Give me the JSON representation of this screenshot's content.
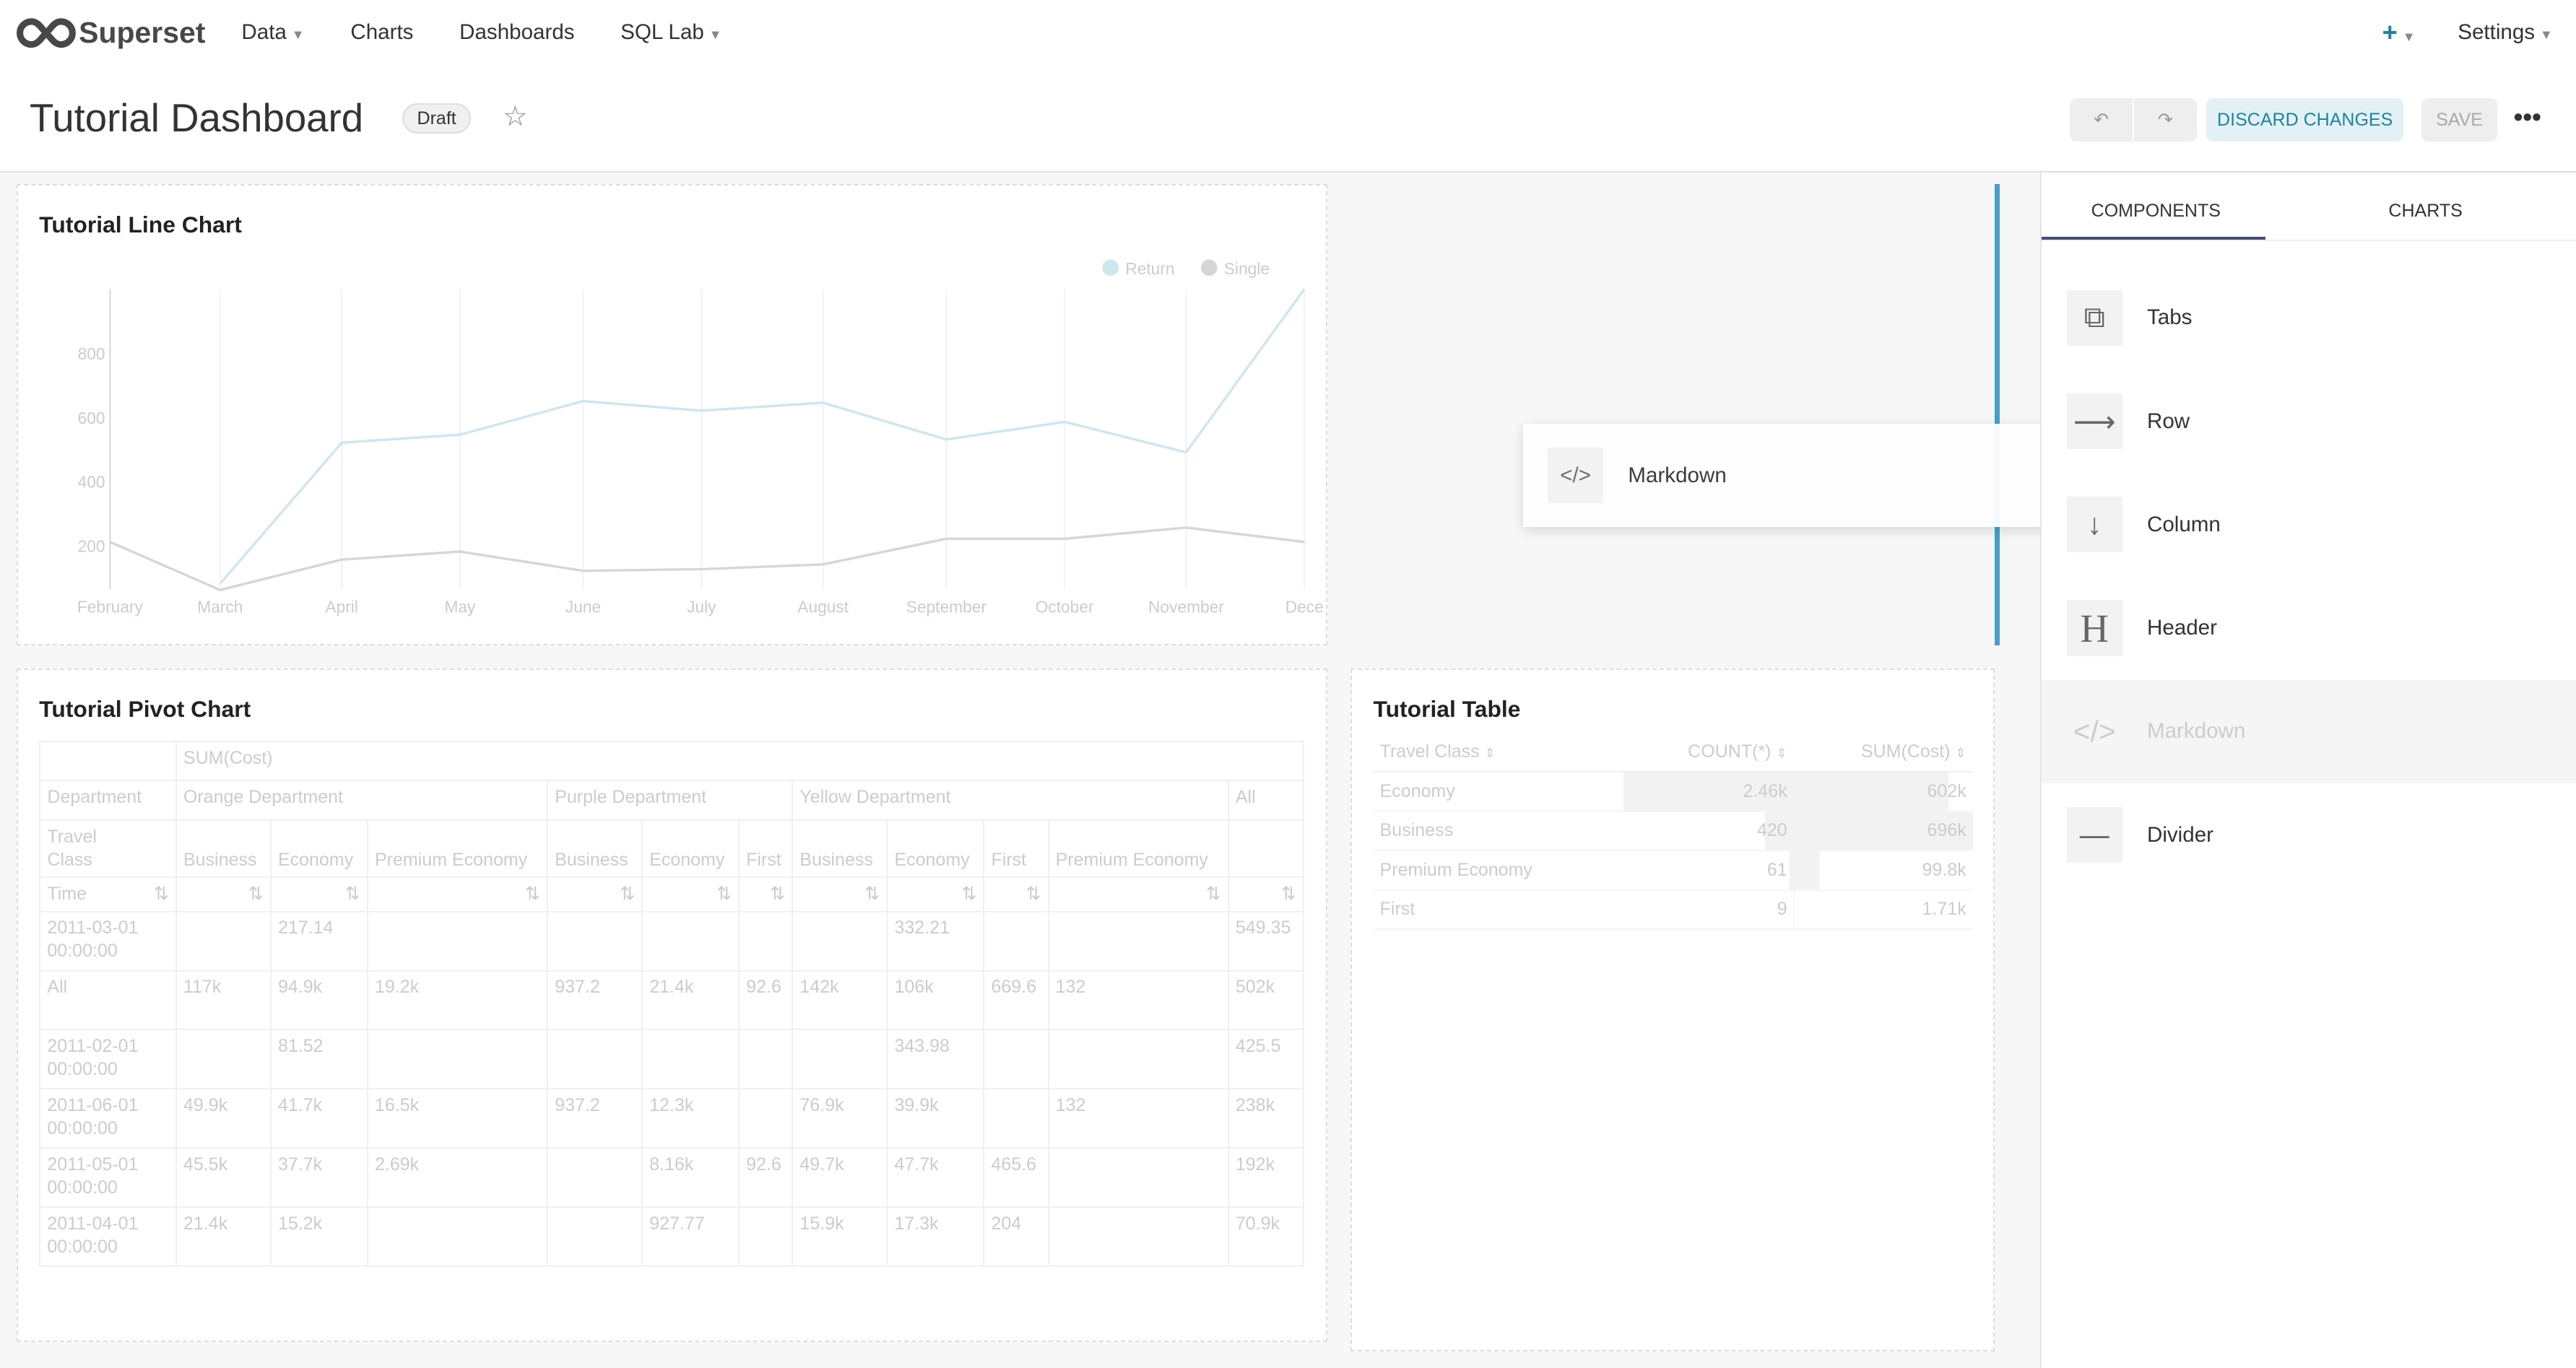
{
  "nav": {
    "brand": "Superset",
    "items": [
      "Data",
      "Charts",
      "Dashboards",
      "SQL Lab"
    ],
    "settings": "Settings"
  },
  "header": {
    "title": "Tutorial Dashboard",
    "status": "Draft",
    "discard": "DISCARD CHANGES",
    "save": "SAVE"
  },
  "line_chart": {
    "title": "Tutorial Line Chart",
    "chart_data": {
      "type": "line",
      "x": [
        "February",
        "March",
        "April",
        "May",
        "June",
        "July",
        "August",
        "September",
        "October",
        "November",
        "Dece"
      ],
      "yticks": [
        200,
        400,
        600,
        800
      ],
      "ylim": [
        0,
        1000
      ],
      "legend": "top-right",
      "series": [
        {
          "name": "Return",
          "color": "#cfe6ee",
          "values": [
            null,
            80,
            520,
            545,
            650,
            620,
            645,
            530,
            585,
            490,
            1000
          ]
        },
        {
          "name": "Single",
          "color": "#d6d6d6",
          "values": [
            210,
            60,
            155,
            180,
            120,
            125,
            140,
            220,
            220,
            255,
            210
          ]
        }
      ]
    }
  },
  "pivot": {
    "title": "Tutorial Pivot Chart",
    "metric": "SUM(Cost)",
    "dept_label": "Department",
    "departments": [
      "Orange Department",
      "Purple Department",
      "Yellow Department",
      "All"
    ],
    "class_label": "Travel Class",
    "classes": [
      "Business",
      "Economy",
      "Premium Economy",
      "Business",
      "Economy",
      "First",
      "Business",
      "Economy",
      "First",
      "Premium Economy",
      ""
    ],
    "time_label": "Time",
    "rows": [
      [
        "2011-03-01 00:00:00",
        "",
        "217.14",
        "",
        "",
        "",
        "",
        "",
        "332.21",
        "",
        "",
        "549.35"
      ],
      [
        "All",
        "117k",
        "94.9k",
        "19.2k",
        "937.2",
        "21.4k",
        "92.6",
        "142k",
        "106k",
        "669.6",
        "132",
        "502k"
      ],
      [
        "2011-02-01 00:00:00",
        "",
        "81.52",
        "",
        "",
        "",
        "",
        "",
        "343.98",
        "",
        "",
        "425.5"
      ],
      [
        "2011-06-01 00:00:00",
        "49.9k",
        "41.7k",
        "16.5k",
        "937.2",
        "12.3k",
        "",
        "76.9k",
        "39.9k",
        "",
        "132",
        "238k"
      ],
      [
        "2011-05-01 00:00:00",
        "45.5k",
        "37.7k",
        "2.69k",
        "",
        "8.16k",
        "92.6",
        "49.7k",
        "47.7k",
        "465.6",
        "",
        "192k"
      ],
      [
        "2011-04-01 00:00:00",
        "21.4k",
        "15.2k",
        "",
        "",
        "927.77",
        "",
        "15.9k",
        "17.3k",
        "204",
        "",
        "70.9k"
      ]
    ]
  },
  "table": {
    "title": "Tutorial Table",
    "columns": [
      "Travel Class",
      "COUNT(*)",
      "SUM(Cost)"
    ],
    "rows": [
      [
        "Economy",
        "2.46k",
        "602k"
      ],
      [
        "Business",
        "420",
        "696k"
      ],
      [
        "Premium Economy",
        "61",
        "99.8k"
      ],
      [
        "First",
        "9",
        "1.71k"
      ]
    ]
  },
  "drag": {
    "label": "Markdown"
  },
  "sidebar": {
    "tabs": [
      "COMPONENTS",
      "CHARTS"
    ],
    "items": [
      "Tabs",
      "Row",
      "Column",
      "Header",
      "Markdown",
      "Divider"
    ]
  },
  "colors": {
    "accent": "#1a85a0",
    "drop_indicator": "#44a0c8"
  }
}
